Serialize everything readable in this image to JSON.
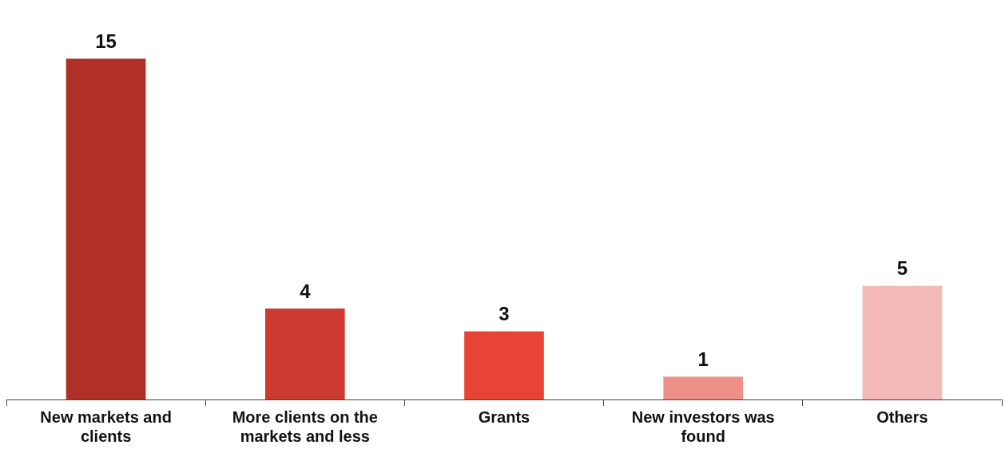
{
  "chart_data": {
    "type": "bar",
    "categories": [
      "New markets and clients",
      "More clients on the markets and less",
      "Grants",
      "New investors was found",
      "Others"
    ],
    "values": [
      15,
      4,
      3,
      1,
      5
    ],
    "colors": [
      "#b03028",
      "#cd3a2f",
      "#e84436",
      "#ee8f88",
      "#f2b9b6"
    ],
    "data_labels": true
  }
}
